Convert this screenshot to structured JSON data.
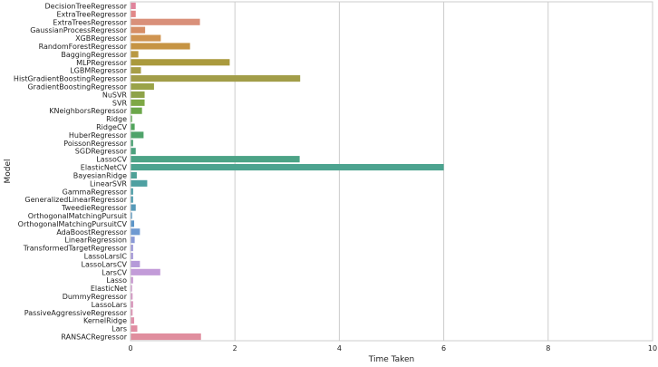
{
  "chart_data": {
    "type": "bar",
    "orientation": "horizontal",
    "xlabel": "Time Taken",
    "ylabel": "Model",
    "xlim": [
      0,
      10
    ],
    "xticks": [
      0,
      2,
      4,
      6,
      8,
      10
    ],
    "grid": "x",
    "categories": [
      "DecisionTreeRegressor",
      "ExtraTreeRegressor",
      "ExtraTreesRegressor",
      "GaussianProcessRegressor",
      "XGBRegressor",
      "RandomForestRegressor",
      "BaggingRegressor",
      "MLPRegressor",
      "LGBMRegressor",
      "HistGradientBoostingRegressor",
      "GradientBoostingRegressor",
      "NuSVR",
      "SVR",
      "KNeighborsRegressor",
      "Ridge",
      "RidgeCV",
      "HuberRegressor",
      "PoissonRegressor",
      "SGDRegressor",
      "LassoCV",
      "ElasticNetCV",
      "BayesianRidge",
      "LinearSVR",
      "GammaRegressor",
      "GeneralizedLinearRegressor",
      "TweedieRegressor",
      "OrthogonalMatchingPursuit",
      "OrthogonalMatchingPursuitCV",
      "AdaBoostRegressor",
      "LinearRegression",
      "TransformedTargetRegressor",
      "LassoLarsIC",
      "LassoLarsCV",
      "LarsCV",
      "Lasso",
      "ElasticNet",
      "DummyRegressor",
      "LassoLars",
      "PassiveAggressiveRegressor",
      "KernelRidge",
      "Lars",
      "RANSACRegressor"
    ],
    "values": [
      0.1,
      0.1,
      1.33,
      0.28,
      0.58,
      1.14,
      0.15,
      1.9,
      0.2,
      3.25,
      0.45,
      0.27,
      0.27,
      0.22,
      0.03,
      0.08,
      0.25,
      0.05,
      0.1,
      3.24,
      6.0,
      0.12,
      0.32,
      0.05,
      0.05,
      0.1,
      0.03,
      0.07,
      0.18,
      0.08,
      0.05,
      0.05,
      0.18,
      0.57,
      0.05,
      0.03,
      0.04,
      0.05,
      0.04,
      0.07,
      0.13,
      1.35
    ],
    "colors": [
      "#e1849c",
      "#e28888",
      "#d9907a",
      "#d68e66",
      "#cf9451",
      "#c69444",
      "#b99943",
      "#aa9a3d",
      "#a79e47",
      "#a29d49",
      "#9aa348",
      "#8ea349",
      "#7ea845",
      "#6ca74a",
      "#5ca74f",
      "#52a55c",
      "#4fa36a",
      "#4ea376",
      "#4da27e",
      "#4ca386",
      "#4ca38f",
      "#4da197",
      "#4ea0a1",
      "#4e9ea8",
      "#519daf",
      "#569ab9",
      "#5998c0",
      "#5e96c8",
      "#6f9ad1",
      "#8a9ad6",
      "#9d9ad9",
      "#a79ad9",
      "#b59ad9",
      "#c29bd8",
      "#c99ad2",
      "#cf98cb",
      "#d596c3",
      "#d995bb",
      "#dc93b3",
      "#df90aa",
      "#e18ea3",
      "#e08e9e"
    ]
  }
}
